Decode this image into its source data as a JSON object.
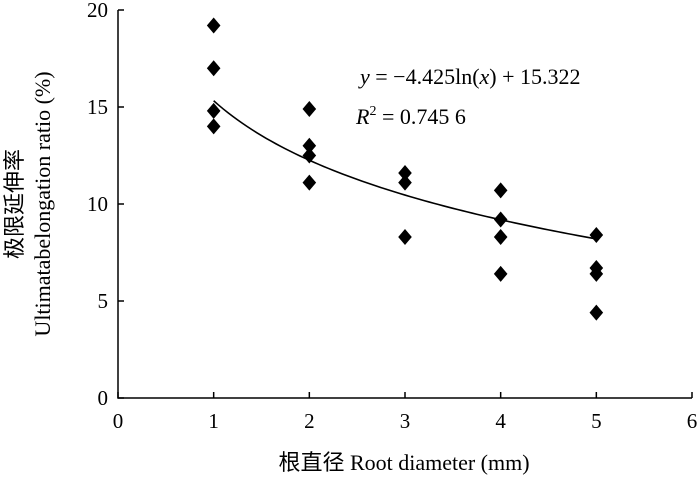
{
  "chart_data": {
    "type": "scatter",
    "xlabel": "根直径 Root diameter (mm)",
    "ylabel_line1": "极限延伸率",
    "ylabel_line2": "Ultimatabelongation ratio (%)",
    "xlim": [
      0,
      6
    ],
    "ylim": [
      0,
      20
    ],
    "x_ticks": [
      0,
      1,
      2,
      3,
      4,
      5,
      6
    ],
    "y_ticks": [
      0,
      5,
      10,
      15,
      20
    ],
    "grid": false,
    "points": [
      {
        "x": 1,
        "y": 19.2
      },
      {
        "x": 1,
        "y": 17.0
      },
      {
        "x": 1,
        "y": 14.8
      },
      {
        "x": 1,
        "y": 14.0
      },
      {
        "x": 2,
        "y": 14.9
      },
      {
        "x": 2,
        "y": 13.0
      },
      {
        "x": 2,
        "y": 12.5
      },
      {
        "x": 2,
        "y": 11.1
      },
      {
        "x": 3,
        "y": 11.6
      },
      {
        "x": 3,
        "y": 11.1
      },
      {
        "x": 3,
        "y": 8.3
      },
      {
        "x": 4,
        "y": 10.7
      },
      {
        "x": 4,
        "y": 9.2
      },
      {
        "x": 4,
        "y": 8.3
      },
      {
        "x": 4,
        "y": 6.4
      },
      {
        "x": 5,
        "y": 8.4
      },
      {
        "x": 5,
        "y": 6.7
      },
      {
        "x": 5,
        "y": 6.4
      },
      {
        "x": 5,
        "y": 4.4
      }
    ],
    "trendline": {
      "type": "logarithmic",
      "a": -4.425,
      "b": 15.322,
      "x_range": [
        1,
        5
      ],
      "equation_y": "y",
      "equation_rest": " = −4.425ln(",
      "equation_x": "x",
      "equation_end": ") + 15.322",
      "r2_r": "R",
      "r2_sup": "2",
      "r2_rest": " = 0.745 6"
    }
  }
}
